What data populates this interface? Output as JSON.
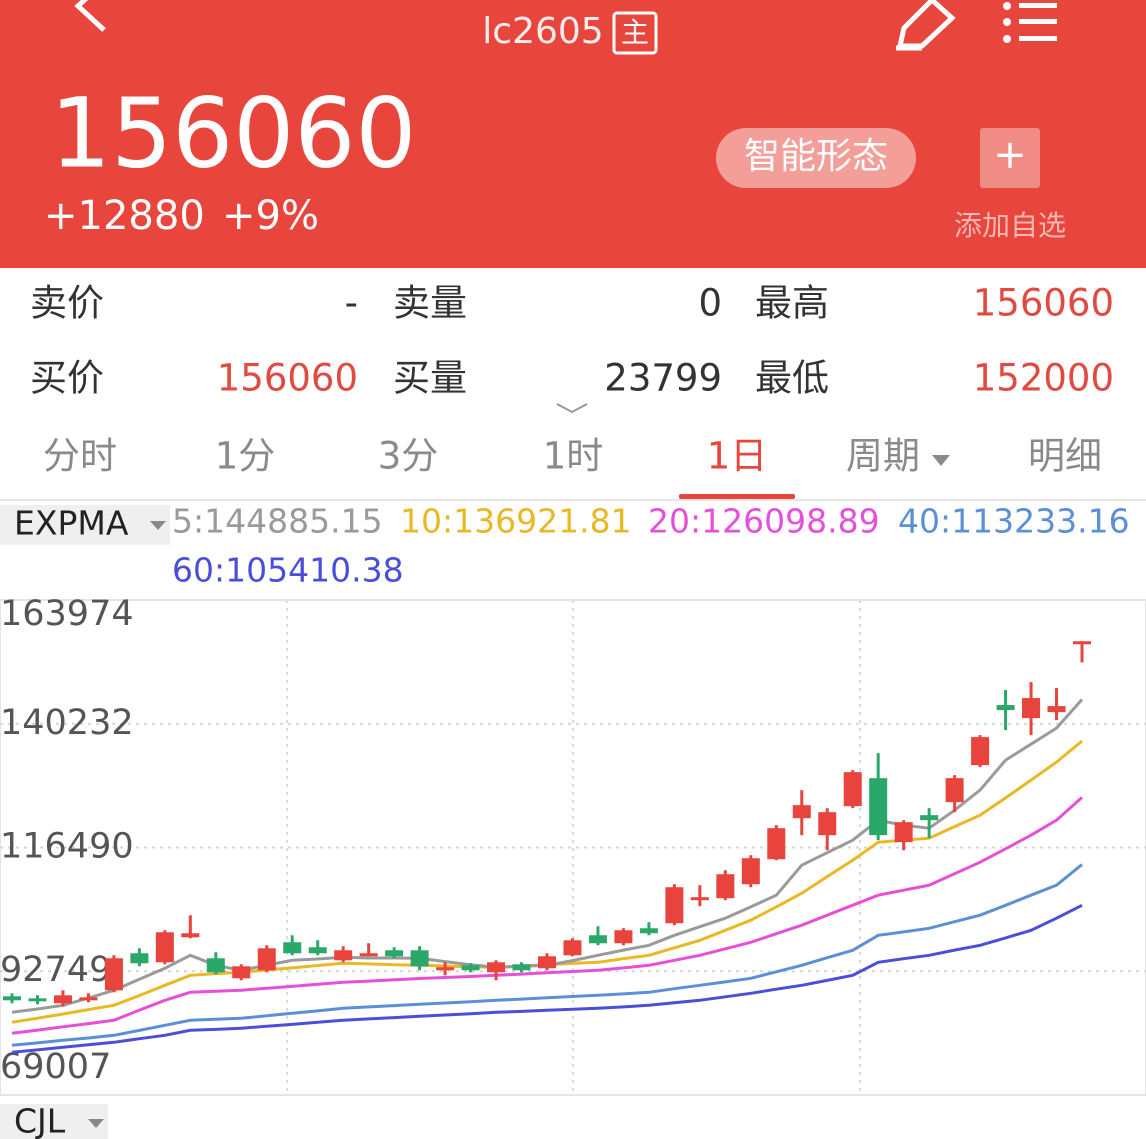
{
  "header": {
    "title": "lc2605",
    "badge": "主",
    "price": "156060",
    "change": "+12880",
    "change_pct": "+9%",
    "smart_button": "智能形态",
    "add_icon": "+",
    "add_label": "添加自选"
  },
  "quote": {
    "rows": [
      [
        "卖价",
        "-",
        "卖量",
        0,
        "最高",
        156060
      ],
      [
        "买价",
        156060,
        "买量",
        23799,
        "最低",
        152000
      ]
    ]
  },
  "tabs": {
    "items": [
      "分时",
      "1分",
      "3分",
      "1时",
      "1日",
      "周期",
      "明细"
    ],
    "active": 4
  },
  "chart_data": {
    "type": "candlestick",
    "indicator": "EXPMA",
    "sub_indicator": "CJL",
    "ylim": [
      69007,
      163974
    ],
    "yticks": [
      69007,
      92749,
      116490,
      140232,
      163974
    ],
    "up_color": "#e8433c",
    "down_color": "#2aa86a",
    "open": [
      87942,
      87558,
      86598,
      87558,
      89094,
      96198,
      94470,
      99270,
      95238,
      91398,
      92934,
      98310,
      97350,
      94854,
      96006,
      96774,
      96774,
      93318,
      93894,
      92550,
      94086,
      93318,
      95814,
      99654,
      98118,
      100998,
      101958,
      106758,
      106758,
      109446,
      114246,
      122118,
      118854,
      124422,
      129798,
      117510,
      122694,
      125190,
      132294,
      143814,
      141318,
      142470,
      156060
    ],
    "close": [
      87174,
      86982,
      88134,
      87750,
      95238,
      94278,
      100230,
      100038,
      92550,
      93702,
      97158,
      96198,
      96198,
      96774,
      96198,
      95622,
      93702,
      93510,
      92934,
      94470,
      92934,
      95622,
      98694,
      98118,
      100614,
      100038,
      108870,
      106950,
      111366,
      114438,
      120198,
      124614,
      123270,
      130950,
      118854,
      121350,
      121734,
      129798,
      137670,
      142854,
      145158,
      143622,
      156060
    ],
    "high": [
      88518,
      88134,
      89094,
      88518,
      95814,
      97158,
      100614,
      103494,
      96390,
      94086,
      97734,
      99654,
      98694,
      97542,
      98118,
      97350,
      97542,
      94470,
      94278,
      94854,
      94470,
      96198,
      99078,
      101382,
      100998,
      102150,
      109446,
      109254,
      112134,
      115014,
      120774,
      127494,
      124038,
      131334,
      134598,
      121734,
      124038,
      130374,
      138054,
      146694,
      148230,
      147078,
      156060
    ],
    "low": [
      86598,
      86406,
      86022,
      86790,
      88710,
      93702,
      94086,
      99078,
      92166,
      91014,
      92550,
      95814,
      95814,
      94470,
      95622,
      95238,
      92934,
      91974,
      92550,
      91014,
      92550,
      92934,
      95622,
      97734,
      97734,
      99654,
      101574,
      105222,
      106374,
      108870,
      114054,
      118854,
      115974,
      124038,
      117894,
      115974,
      118278,
      123270,
      131910,
      139014,
      138054,
      140934,
      152000
    ],
    "series": [
      {
        "label": "5:144885.15",
        "color": "#9a9a9a",
        "values": [
          84870,
          85500,
          86214,
          87600,
          89094,
          91200,
          93318,
          95814,
          93894,
          92934,
          93900,
          94854,
          95100,
          95430,
          95300,
          95300,
          95238,
          94600,
          94000,
          93510,
          93700,
          93894,
          94800,
          95814,
          96800,
          97734,
          99654,
          101300,
          102918,
          105100,
          107334,
          113094,
          115500,
          117894,
          121734,
          120774,
          120198,
          123654,
          127494,
          133254,
          136300,
          139398,
          144885.15
        ]
      },
      {
        "label": "10:136921.81",
        "color": "#e9b824",
        "values": [
          82950,
          83750,
          84550,
          85400,
          86214,
          88100,
          90054,
          91974,
          92300,
          92550,
          93000,
          93400,
          93850,
          94278,
          94150,
          94000,
          93900,
          93750,
          93600,
          93510,
          93750,
          94000,
          94250,
          94470,
          95150,
          95814,
          97250,
          98694,
          100600,
          102534,
          105100,
          107718,
          110900,
          114054,
          117510,
          117900,
          118278,
          120500,
          122694,
          126000,
          129414,
          132870,
          136921.81
        ]
      },
      {
        "label": "20:126098.89",
        "color": "#e64fd8",
        "values": [
          80838,
          81450,
          82100,
          82700,
          83334,
          85300,
          87174,
          88710,
          88900,
          89094,
          89500,
          89850,
          90250,
          90630,
          90850,
          91100,
          91350,
          91550,
          91750,
          91974,
          92200,
          92450,
          92700,
          92934,
          93400,
          93894,
          94850,
          95814,
          97050,
          98310,
          99950,
          101574,
          103500,
          105414,
          107334,
          108300,
          109254,
          111450,
          113670,
          116250,
          118854,
          121734,
          126098.89
        ]
      },
      {
        "label": "40:113233.16",
        "color": "#5b8fd6",
        "values": [
          78534,
          79000,
          79500,
          79950,
          80454,
          81400,
          82374,
          83334,
          83550,
          83718,
          84200,
          84700,
          85150,
          85638,
          85900,
          86150,
          86400,
          86650,
          86900,
          87174,
          87400,
          87650,
          87900,
          88134,
          88400,
          88710,
          89400,
          90054,
          90700,
          91398,
          92650,
          93894,
          95350,
          96774,
          99654,
          100300,
          100998,
          102250,
          103494,
          105400,
          107334,
          109254,
          113233.16
        ]
      },
      {
        "label": "60:105410.38",
        "color": "#4b4fd8",
        "values": [
          77190,
          77650,
          78150,
          78650,
          79110,
          79800,
          80454,
          81414,
          81600,
          81798,
          82200,
          82550,
          82950,
          83334,
          83600,
          83850,
          84100,
          84350,
          84600,
          84870,
          85050,
          85250,
          85450,
          85638,
          85900,
          86214,
          86700,
          87174,
          87850,
          88518,
          89300,
          90054,
          91000,
          91974,
          94470,
          95150,
          95814,
          96800,
          97734,
          99150,
          100614,
          102918,
          105410.38
        ]
      }
    ]
  }
}
